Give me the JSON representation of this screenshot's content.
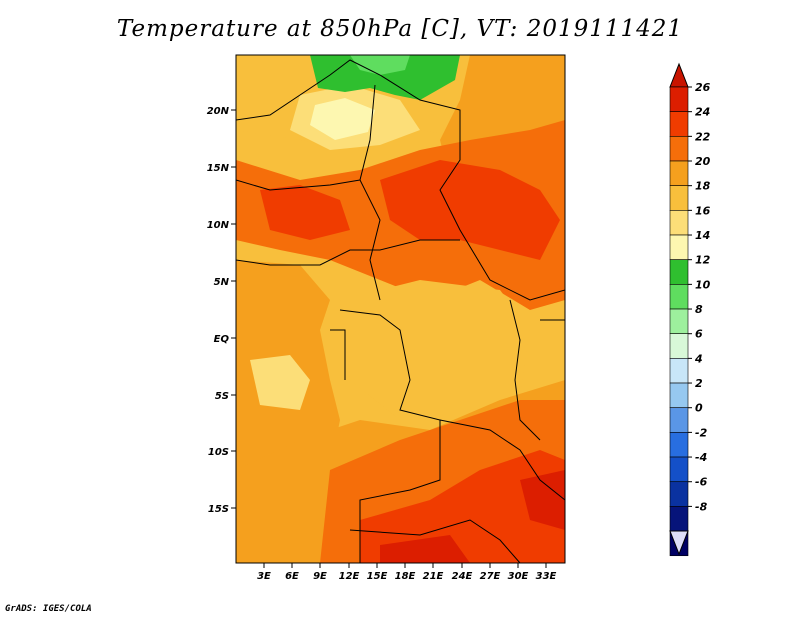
{
  "title": "Temperature at 850hPa [C], VT: 2019111421",
  "credit": "GrADS: IGES/COLA",
  "map": {
    "lat_ticks": [
      "20N",
      "15N",
      "10N",
      "5N",
      "EQ",
      "5S",
      "10S",
      "15S"
    ],
    "lon_ticks": [
      "3E",
      "6E",
      "9E",
      "12E",
      "15E",
      "18E",
      "21E",
      "24E",
      "27E",
      "30E",
      "33E"
    ]
  },
  "colorbar": {
    "labels": [
      "26",
      "24",
      "22",
      "20",
      "18",
      "16",
      "14",
      "12",
      "10",
      "8",
      "6",
      "4",
      "2",
      "0",
      "-2",
      "-4",
      "-6",
      "-8"
    ],
    "colors": [
      "#dc1e00",
      "#f03c00",
      "#f56e0a",
      "#f5a01e",
      "#f8bf3c",
      "#fcde78",
      "#fdf7b0",
      "#2fbf2f",
      "#5fdd5f",
      "#9df09d",
      "#d8f8d8",
      "#c8e6f8",
      "#96c8f0",
      "#5a96e6",
      "#286ee0",
      "#1450c8",
      "#0a32a0",
      "#06147a",
      "#000064"
    ],
    "max_triangle_color": "#c81400",
    "min_triangle_color": "#ddddf8"
  }
}
